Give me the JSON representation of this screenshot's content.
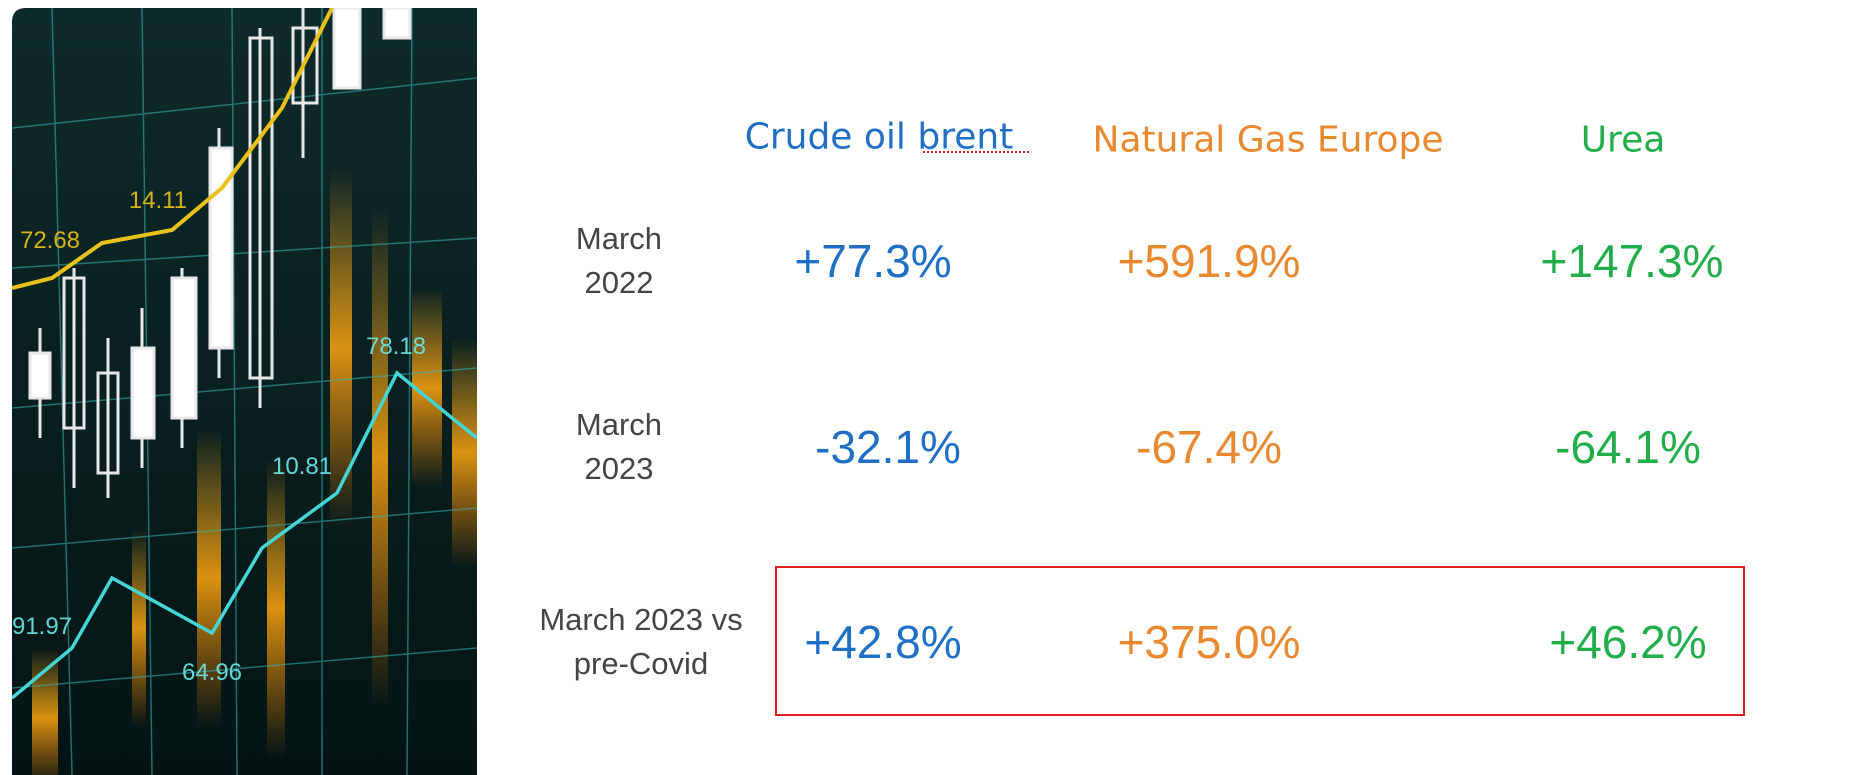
{
  "table": {
    "columns": [
      "Crude oil brent",
      "Natural Gas Europe",
      "Urea"
    ],
    "rows": [
      {
        "label": "March 2022",
        "values": [
          "+77.3%",
          "+591.9%",
          "+147.3%"
        ]
      },
      {
        "label": "March 2023",
        "values": [
          "-32.1%",
          "-67.4%",
          "-64.1%"
        ]
      },
      {
        "label": "March 2023 vs pre-Covid",
        "values": [
          "+42.8%",
          "+375.0%",
          "+46.2%"
        ]
      }
    ]
  },
  "image": {
    "labels": [
      "72.68",
      "14.11",
      "78.18",
      "10.81",
      "91.97",
      "64.96"
    ]
  }
}
